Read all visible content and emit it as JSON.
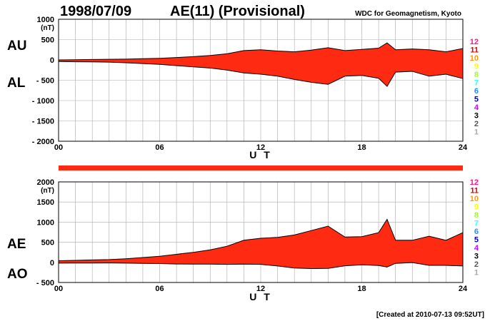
{
  "header": {
    "date": "1998/07/09",
    "index_title": "AE(11) (Provisional)",
    "source": "WDC for Geomagnetism, Kyoto"
  },
  "footer": {
    "created": "[Created at 2010-07-13 09:52UT]"
  },
  "colors": {
    "fill": "#ff2a12",
    "outline": "#000000",
    "grid": "#aaaaaa"
  },
  "legend": {
    "labels": [
      "12",
      "11",
      "10",
      "9",
      "8",
      "7",
      "6",
      "5",
      "4",
      "3",
      "2",
      "1"
    ],
    "colors": [
      "#ff1493",
      "#e00000",
      "#ff9900",
      "#ffff00",
      "#99ff33",
      "#33ffff",
      "#1e90ff",
      "#0000cc",
      "#cc00ff",
      "#000000",
      "#555555",
      "#aaaaaa"
    ]
  },
  "chart_data": [
    {
      "type": "area",
      "panel": "AU/AL",
      "unit": "(nT)",
      "upper_label": "AU",
      "lower_label": "AL",
      "xlabel": "U T",
      "xlim": [
        0,
        24
      ],
      "x_ticks": [
        "00",
        "06",
        "12",
        "18",
        "24"
      ],
      "ylim": [
        -2000,
        1000
      ],
      "y_ticks": [
        "1000",
        "500",
        "0",
        "- 500",
        "- 1000",
        "- 1500",
        "- 2000"
      ],
      "x": [
        0,
        1,
        2,
        3,
        4,
        5,
        6,
        7,
        8,
        9,
        10,
        11,
        12,
        13,
        14,
        15,
        16,
        17,
        18,
        19,
        19.5,
        20,
        21,
        22,
        23,
        24
      ],
      "upper": [
        0,
        5,
        10,
        15,
        20,
        30,
        40,
        60,
        80,
        110,
        150,
        230,
        250,
        220,
        200,
        240,
        300,
        230,
        260,
        290,
        420,
        250,
        270,
        250,
        200,
        280
      ],
      "lower": [
        -40,
        -45,
        -50,
        -55,
        -70,
        -90,
        -110,
        -140,
        -170,
        -200,
        -250,
        -320,
        -350,
        -400,
        -480,
        -550,
        -600,
        -400,
        -380,
        -450,
        -650,
        -300,
        -280,
        -400,
        -350,
        -460
      ]
    },
    {
      "type": "area",
      "panel": "AE/AO",
      "unit": "(nT)",
      "upper_label": "AE",
      "lower_label": "AO",
      "xlabel": "U T",
      "xlim": [
        0,
        24
      ],
      "x_ticks": [
        "00",
        "06",
        "12",
        "18",
        "24"
      ],
      "ylim": [
        -500,
        2000
      ],
      "y_ticks": [
        "2000",
        "1500",
        "1000",
        "500",
        "0",
        "- 500"
      ],
      "x": [
        0,
        1,
        2,
        3,
        4,
        5,
        6,
        7,
        8,
        9,
        10,
        11,
        12,
        13,
        14,
        15,
        16,
        17,
        18,
        19,
        19.5,
        20,
        21,
        22,
        23,
        24
      ],
      "upper": [
        40,
        50,
        60,
        70,
        90,
        120,
        150,
        200,
        250,
        310,
        400,
        550,
        600,
        620,
        680,
        790,
        900,
        630,
        640,
        740,
        1070,
        550,
        550,
        650,
        550,
        740
      ],
      "lower": [
        -20,
        -18,
        -16,
        -15,
        -20,
        -25,
        -30,
        -40,
        -45,
        -45,
        -50,
        -45,
        -50,
        -90,
        -140,
        -155,
        -150,
        -85,
        -60,
        -80,
        -115,
        -25,
        -5,
        -75,
        -75,
        -90
      ]
    }
  ]
}
